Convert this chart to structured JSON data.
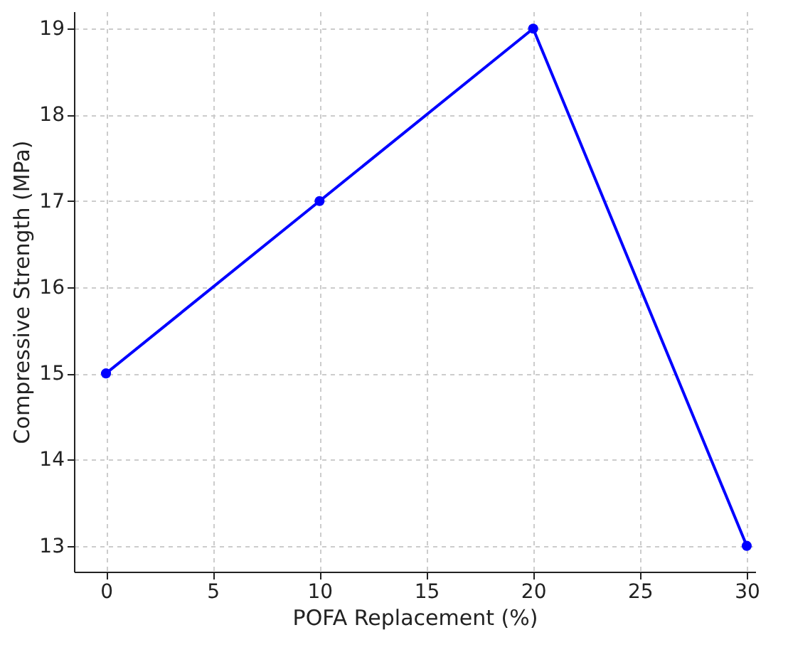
{
  "chart_data": {
    "type": "line",
    "xlabel": "POFA Replacement (%)",
    "ylabel": "Compressive Strength (MPa)",
    "x": [
      0,
      10,
      20,
      30
    ],
    "series": [
      {
        "color": "#0000ff",
        "values": [
          15,
          17,
          19,
          13
        ]
      }
    ],
    "xlim": [
      -1.5,
      30.4
    ],
    "ylim": [
      12.7,
      19.2
    ],
    "xticks": [
      0,
      5,
      10,
      15,
      20,
      25,
      30
    ],
    "yticks": [
      13,
      14,
      15,
      16,
      17,
      18,
      19
    ],
    "grid": true,
    "marker": "circle",
    "line_style": "solid"
  }
}
